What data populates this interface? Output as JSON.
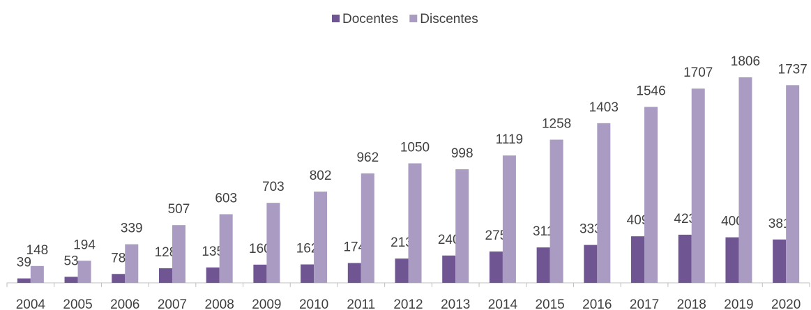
{
  "chart_data": {
    "type": "bar",
    "categories": [
      "2004",
      "2005",
      "2006",
      "2007",
      "2008",
      "2009",
      "2010",
      "2011",
      "2012",
      "2013",
      "2014",
      "2015",
      "2016",
      "2017",
      "2018",
      "2019",
      "2020"
    ],
    "series": [
      {
        "name": "Docentes",
        "color": "#6f5592",
        "values": [
          39,
          53,
          78,
          128,
          135,
          160,
          162,
          174,
          213,
          240,
          275,
          311,
          333,
          409,
          423,
          400,
          381
        ]
      },
      {
        "name": "Discentes",
        "color": "#a99bc2",
        "values": [
          148,
          194,
          339,
          507,
          603,
          703,
          802,
          962,
          1050,
          998,
          1119,
          1258,
          1403,
          1546,
          1707,
          1806,
          1737
        ]
      }
    ],
    "legend": "top"
  }
}
